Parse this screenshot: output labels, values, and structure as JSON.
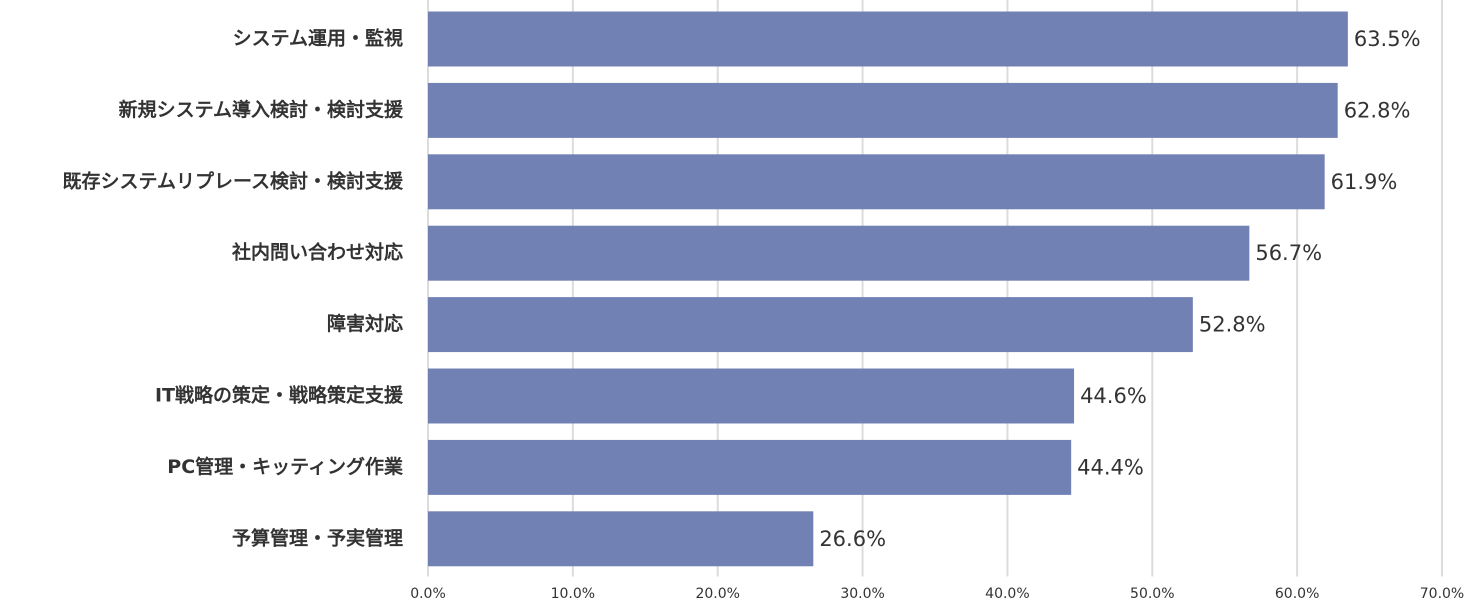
{
  "chart_data": {
    "type": "barh",
    "categories": [
      "システム運用・監視",
      "新規システム導入検討・検討支援",
      "既存システムリプレース検討・検討支援",
      "社内問い合わせ対応",
      "障害対応",
      "IT戦略の策定・戦略策定支援",
      "PC管理・キッティング作業",
      "予算管理・予実管理"
    ],
    "values": [
      63.5,
      62.8,
      61.9,
      56.7,
      52.8,
      44.6,
      44.4,
      26.6
    ],
    "value_labels": [
      "63.5%",
      "62.8%",
      "61.9%",
      "56.7%",
      "52.8%",
      "44.6%",
      "44.4%",
      "26.6%"
    ],
    "color": "#7281b4",
    "xlim": [
      0,
      70
    ],
    "xticks": [
      {
        "value": 0,
        "label": "0.0%"
      },
      {
        "value": 10,
        "label": "10.0%"
      },
      {
        "value": 20,
        "label": "20.0%"
      },
      {
        "value": 30,
        "label": "30.0%"
      },
      {
        "value": 40,
        "label": "40.0%"
      },
      {
        "value": 50,
        "label": "50.0%"
      },
      {
        "value": 60,
        "label": "60.0%"
      },
      {
        "value": 70,
        "label": "70.0%"
      }
    ],
    "grid": true
  }
}
